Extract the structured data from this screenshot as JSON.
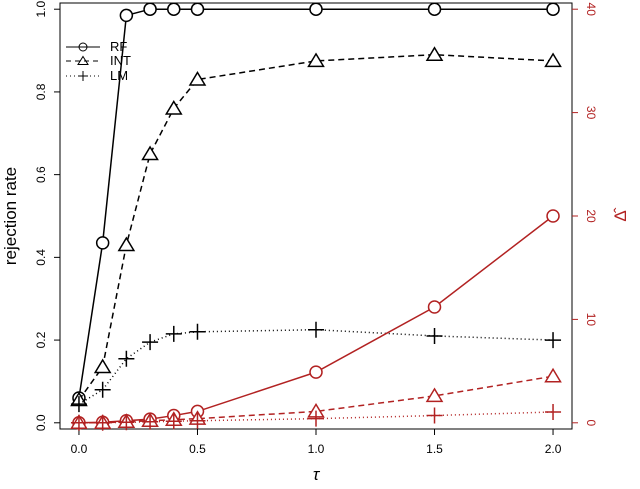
{
  "chart_data": {
    "type": "line",
    "x_label": "τ",
    "y_label": "rejection rate",
    "y2_label": "Δ̂",
    "x_ticks": [
      "0.0",
      "0.5",
      "1.0",
      "1.5",
      "2.0"
    ],
    "y_ticks": [
      "0.0",
      "0.2",
      "0.4",
      "0.6",
      "0.8",
      "1.0"
    ],
    "y2_ticks": [
      "0",
      "10",
      "20",
      "30",
      "40"
    ],
    "xlim": [
      -0.08,
      2.08
    ],
    "ylim": [
      -0.015,
      1.015
    ],
    "y2lim": [
      -0.6,
      40.6
    ],
    "x": [
      0,
      0.1,
      0.2,
      0.3,
      0.4,
      0.5,
      1.0,
      1.5,
      2.0
    ],
    "legend_position": "top-left",
    "colors": {
      "axis": "#000000",
      "secondary": "#b22222"
    },
    "series": [
      {
        "name": "RF",
        "axis": "left",
        "marker": "circle",
        "dash": "solid",
        "values": [
          0.06,
          0.435,
          0.985,
          1.0,
          1.0,
          1.0,
          1.0,
          1.0,
          1.0
        ]
      },
      {
        "name": "INT",
        "axis": "left",
        "marker": "triangle",
        "dash": "dashed",
        "values": [
          0.055,
          0.135,
          0.43,
          0.65,
          0.76,
          0.83,
          0.875,
          0.89,
          0.875
        ]
      },
      {
        "name": "LM",
        "axis": "left",
        "marker": "plus",
        "dash": "dotted",
        "values": [
          0.045,
          0.08,
          0.155,
          0.195,
          0.215,
          0.22,
          0.225,
          0.21,
          0.2
        ]
      },
      {
        "axis": "right",
        "marker": "circle",
        "dash": "solid",
        "values": [
          0.0,
          0.05,
          0.2,
          0.35,
          0.7,
          1.1,
          4.9,
          11.2,
          20.0
        ]
      },
      {
        "axis": "right",
        "marker": "triangle",
        "dash": "dashed",
        "values": [
          0.0,
          0.0,
          0.1,
          0.2,
          0.3,
          0.4,
          1.1,
          2.6,
          4.5
        ]
      },
      {
        "axis": "right",
        "marker": "plus",
        "dash": "dotted",
        "values": [
          0.0,
          0.0,
          0.05,
          0.1,
          0.15,
          0.2,
          0.4,
          0.7,
          1.05
        ]
      }
    ]
  }
}
